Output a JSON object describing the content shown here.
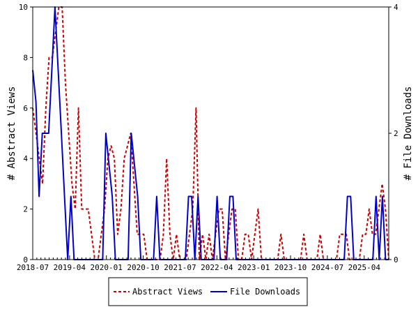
{
  "chart_data": {
    "type": "line",
    "ylabel_left": "# Abstract Views",
    "ylabel_right": "# File Downloads",
    "x_tick_labels": [
      "2018-07",
      "2019-04",
      "2020-01",
      "2020-10",
      "2021-07",
      "2022-04",
      "2023-01",
      "2023-10",
      "2024-07",
      "2025-04"
    ],
    "y_left_ticks": [
      "0",
      "2",
      "4",
      "6",
      "8",
      "10"
    ],
    "y_right_ticks": [
      "0",
      "2",
      "4"
    ],
    "ylim_left": [
      0,
      10
    ],
    "ylim_right": [
      0,
      4
    ],
    "legend_position": "bottom-center",
    "series": [
      {
        "name": "Abstract Views",
        "axis": "left",
        "color": "#cc0000",
        "dash": true,
        "values": [
          6,
          5,
          4,
          3,
          6,
          8,
          8,
          9,
          10,
          10,
          7,
          5,
          3,
          2,
          6,
          2,
          2,
          2,
          1,
          0,
          0,
          1,
          2,
          4,
          4.5,
          4,
          1,
          2,
          4,
          4.5,
          5,
          3,
          1,
          1,
          1,
          0,
          0,
          0,
          0,
          0,
          1,
          4,
          1,
          0,
          1,
          0,
          0,
          0,
          1,
          2,
          6,
          0,
          1,
          0,
          1,
          0,
          1,
          2,
          2,
          0,
          1,
          2,
          2,
          0,
          0,
          1,
          1,
          0,
          1,
          2,
          0,
          0,
          0,
          0,
          0,
          0,
          1,
          0,
          0,
          0,
          0,
          0,
          0,
          1,
          0,
          0,
          0,
          0,
          1,
          0,
          0,
          0,
          0,
          0,
          1,
          1,
          1,
          0,
          0,
          0,
          0,
          1,
          1,
          2,
          1,
          1,
          2,
          3,
          2,
          0
        ]
      },
      {
        "name": "File Downloads",
        "axis": "right",
        "color": "#0000cc",
        "dash": false,
        "values": [
          3,
          2.5,
          1,
          2,
          2,
          2,
          3,
          4,
          3,
          2,
          1,
          0,
          1,
          0,
          0,
          0,
          0,
          0,
          0,
          0,
          0,
          0,
          0,
          2,
          1.5,
          1,
          0,
          0,
          0,
          0,
          0,
          2,
          1.5,
          1,
          0,
          0,
          0,
          0,
          0,
          1,
          0,
          0,
          0,
          0,
          0,
          0,
          0,
          0,
          0,
          1,
          1,
          0,
          1,
          0,
          0,
          0,
          0,
          0,
          1,
          0,
          0,
          0,
          1,
          1,
          0,
          0,
          0,
          0,
          0,
          0,
          0,
          0,
          0,
          0,
          0,
          0,
          0,
          0,
          0,
          0,
          0,
          0,
          0,
          0,
          0,
          0,
          0,
          0,
          0,
          0,
          0,
          0,
          0,
          0,
          0,
          0,
          0,
          0,
          0,
          1,
          1,
          0,
          0,
          0,
          0,
          0,
          0,
          0,
          1,
          0,
          1,
          0,
          0
        ]
      }
    ]
  }
}
